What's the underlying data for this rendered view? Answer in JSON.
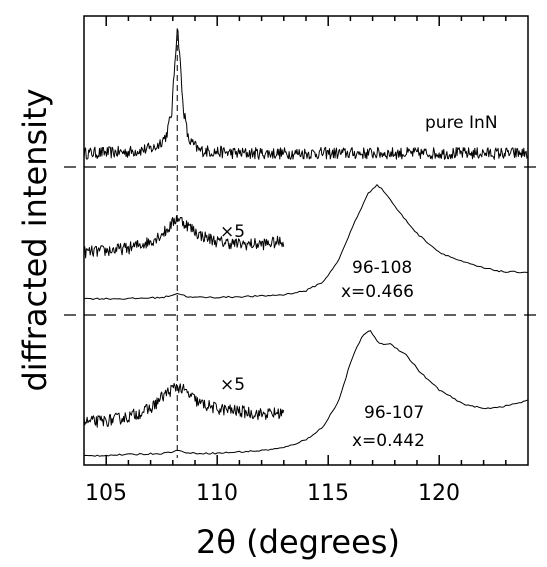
{
  "chart_data": {
    "type": "line",
    "title": "",
    "xlabel": "2θ (degrees)",
    "ylabel": "diffracted intensity",
    "xlim": [
      104,
      124
    ],
    "x_ticks": [
      105,
      110,
      115,
      120
    ],
    "x_tick_labels": [
      "105",
      "110",
      "115",
      "120"
    ],
    "reference_line_x": 108.2,
    "panels": [
      {
        "name": "pure InN",
        "annotations": [
          "pure InN"
        ],
        "series": [
          {
            "name": "pure InN",
            "noisy": true,
            "points": [
              [
                104.0,
                0.05
              ],
              [
                106.0,
                0.06
              ],
              [
                107.2,
                0.09
              ],
              [
                107.7,
                0.18
              ],
              [
                107.95,
                0.35
              ],
              [
                108.1,
                0.75
              ],
              [
                108.2,
                1.0
              ],
              [
                108.3,
                0.82
              ],
              [
                108.45,
                0.42
              ],
              [
                108.7,
                0.15
              ],
              [
                109.2,
                0.07
              ],
              [
                111.0,
                0.05
              ],
              [
                124.0,
                0.05
              ]
            ]
          }
        ]
      },
      {
        "name": "96-108",
        "annotations": [
          "96-108",
          "x=0.466",
          "×5"
        ],
        "series": [
          {
            "name": "×5",
            "noisy": true,
            "points": [
              [
                104.0,
                0.42
              ],
              [
                105.0,
                0.43
              ],
              [
                106.0,
                0.45
              ],
              [
                107.0,
                0.5
              ],
              [
                107.7,
                0.58
              ],
              [
                108.2,
                0.68
              ],
              [
                108.6,
                0.63
              ],
              [
                109.2,
                0.55
              ],
              [
                110.0,
                0.5
              ],
              [
                111.0,
                0.48
              ],
              [
                112.0,
                0.48
              ],
              [
                113.0,
                0.5
              ]
            ]
          },
          {
            "name": "",
            "noisy": false,
            "points": [
              [
                104.0,
                0.07
              ],
              [
                106.0,
                0.07
              ],
              [
                107.6,
                0.08
              ],
              [
                108.2,
                0.11
              ],
              [
                108.8,
                0.08
              ],
              [
                110.0,
                0.08
              ],
              [
                112.0,
                0.09
              ],
              [
                113.0,
                0.1
              ],
              [
                114.0,
                0.13
              ],
              [
                114.8,
                0.2
              ],
              [
                115.5,
                0.37
              ],
              [
                116.2,
                0.65
              ],
              [
                116.8,
                0.86
              ],
              [
                117.2,
                0.93
              ],
              [
                117.6,
                0.86
              ],
              [
                118.2,
                0.72
              ],
              [
                119.0,
                0.56
              ],
              [
                120.0,
                0.42
              ],
              [
                121.0,
                0.35
              ],
              [
                122.0,
                0.3
              ],
              [
                123.0,
                0.27
              ],
              [
                124.0,
                0.27
              ]
            ]
          }
        ]
      },
      {
        "name": "96-107",
        "annotations": [
          "96-107",
          "x=0.442",
          "×5"
        ],
        "series": [
          {
            "name": "×5",
            "noisy": true,
            "points": [
              [
                104.0,
                0.28
              ],
              [
                105.0,
                0.29
              ],
              [
                106.0,
                0.32
              ],
              [
                107.0,
                0.38
              ],
              [
                107.6,
                0.48
              ],
              [
                108.2,
                0.55
              ],
              [
                108.6,
                0.5
              ],
              [
                109.2,
                0.42
              ],
              [
                110.0,
                0.38
              ],
              [
                111.0,
                0.36
              ],
              [
                112.0,
                0.34
              ],
              [
                113.0,
                0.35
              ]
            ]
          },
          {
            "name": "",
            "noisy": false,
            "points": [
              [
                104.0,
                0.03
              ],
              [
                106.0,
                0.04
              ],
              [
                107.6,
                0.05
              ],
              [
                108.2,
                0.07
              ],
              [
                108.8,
                0.05
              ],
              [
                110.0,
                0.05
              ],
              [
                112.0,
                0.07
              ],
              [
                113.0,
                0.09
              ],
              [
                114.0,
                0.15
              ],
              [
                114.8,
                0.25
              ],
              [
                115.5,
                0.45
              ],
              [
                116.0,
                0.72
              ],
              [
                116.5,
                0.91
              ],
              [
                116.9,
                0.96
              ],
              [
                117.3,
                0.86
              ],
              [
                117.8,
                0.86
              ],
              [
                118.5,
                0.78
              ],
              [
                119.2,
                0.64
              ],
              [
                120.0,
                0.52
              ],
              [
                121.0,
                0.42
              ],
              [
                122.0,
                0.38
              ],
              [
                123.0,
                0.4
              ],
              [
                124.0,
                0.44
              ]
            ]
          }
        ]
      }
    ]
  }
}
